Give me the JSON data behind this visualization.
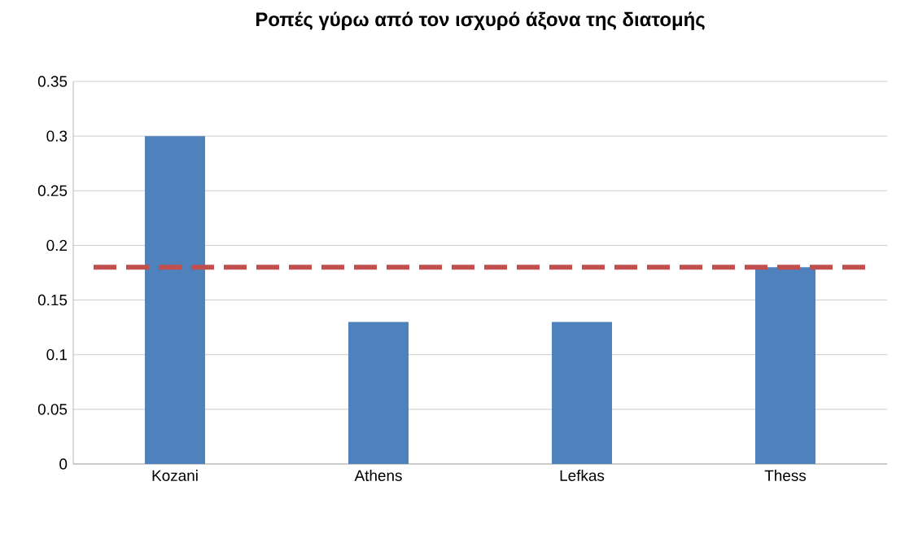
{
  "chart_data": {
    "type": "bar",
    "title": "Ροπές γύρω από τον ισχυρό άξονα της διατομής",
    "categories": [
      "Kozani",
      "Athens",
      "Lefkas",
      "Thess"
    ],
    "values": [
      0.3,
      0.13,
      0.13,
      0.18
    ],
    "color": "#4f81bd",
    "ylim": [
      0,
      0.35
    ],
    "yticks": [
      0,
      0.05,
      0.1,
      0.15,
      0.2,
      0.25,
      0.3,
      0.35
    ],
    "grid": "y",
    "ref_lines": [
      {
        "axis": "y",
        "value": 0.18,
        "color": "#c0504d",
        "line_style": "dashed"
      }
    ]
  }
}
